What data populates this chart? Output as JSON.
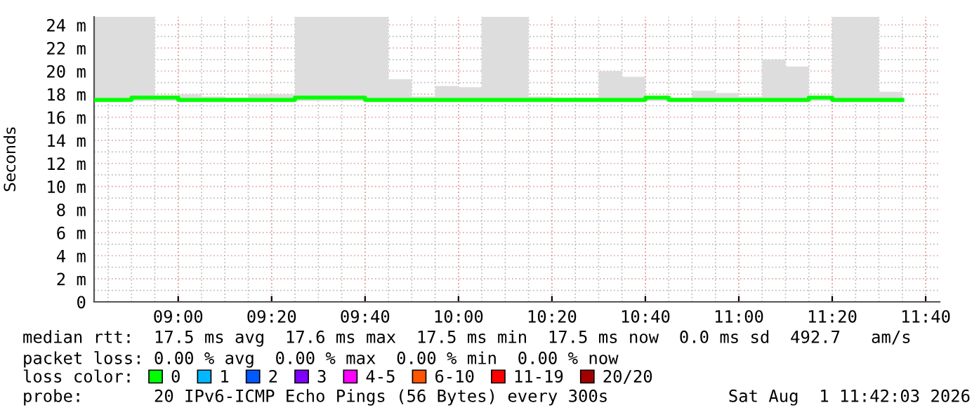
{
  "chart_data": {
    "type": "step",
    "ylabel": "Seconds",
    "x": [
      "2026-08-01T08:42",
      "2026-08-01T08:50",
      "2026-08-01T08:55",
      "2026-08-01T09:00",
      "2026-08-01T09:05",
      "2026-08-01T09:10",
      "2026-08-01T09:15",
      "2026-08-01T09:20",
      "2026-08-01T09:25",
      "2026-08-01T09:30",
      "2026-08-01T09:35",
      "2026-08-01T09:40",
      "2026-08-01T09:45",
      "2026-08-01T09:50",
      "2026-08-01T09:55",
      "2026-08-01T10:00",
      "2026-08-01T10:05",
      "2026-08-01T10:10",
      "2026-08-01T10:15",
      "2026-08-01T10:20",
      "2026-08-01T10:25",
      "2026-08-01T10:30",
      "2026-08-01T10:35",
      "2026-08-01T10:40",
      "2026-08-01T10:45",
      "2026-08-01T10:50",
      "2026-08-01T10:55",
      "2026-08-01T11:00",
      "2026-08-01T11:05",
      "2026-08-01T11:10",
      "2026-08-01T11:15",
      "2026-08-01T11:20",
      "2026-08-01T11:25",
      "2026-08-01T11:30",
      "2026-08-01T11:35"
    ],
    "series": [
      {
        "name": "0",
        "color": "#00ff00",
        "values": [
          17.5,
          17.7,
          17.7,
          17.5,
          17.5,
          17.5,
          17.5,
          17.5,
          17.7,
          17.7,
          17.7,
          17.5,
          17.5,
          17.5,
          17.5,
          17.5,
          17.5,
          17.5,
          17.5,
          17.5,
          17.5,
          17.5,
          17.5,
          17.7,
          17.5,
          17.5,
          17.5,
          17.5,
          17.5,
          17.5,
          17.7,
          17.5,
          17.5,
          17.5,
          17.5
        ],
        "lower": [
          17.4,
          17.4,
          17.4,
          17.4,
          17.4,
          17.4,
          17.4,
          17.4,
          17.4,
          17.4,
          17.4,
          17.4,
          17.4,
          17.4,
          17.4,
          17.4,
          17.4,
          17.4,
          17.4,
          17.4,
          17.4,
          17.4,
          17.4,
          17.4,
          17.4,
          17.4,
          17.4,
          17.4,
          17.4,
          17.4,
          17.4,
          17.4,
          17.4,
          17.4,
          17.4
        ],
        "upper": [
          24.7,
          24.7,
          17.9,
          18.0,
          17.8,
          17.7,
          18.0,
          18.0,
          24.7,
          24.7,
          24.7,
          24.7,
          19.3,
          17.8,
          18.7,
          18.6,
          24.7,
          24.7,
          17.8,
          17.7,
          17.7,
          20.0,
          19.5,
          17.8,
          17.7,
          18.3,
          18.1,
          17.8,
          21.0,
          20.4,
          17.8,
          24.7,
          24.7,
          18.2,
          18.2
        ]
      },
      {
        "name": "1",
        "color": "#00b8ff",
        "values": [
          null,
          null,
          null,
          null,
          null,
          null,
          null,
          null,
          null,
          null,
          null,
          null,
          null,
          null,
          null,
          null,
          null,
          null,
          null,
          null,
          null,
          null,
          null,
          null,
          null,
          null,
          null,
          null,
          null,
          null,
          null,
          null,
          null,
          null,
          null
        ]
      },
      {
        "name": "2",
        "color": "#0059ff",
        "values": [
          null,
          null,
          null,
          null,
          null,
          null,
          null,
          null,
          null,
          null,
          null,
          null,
          null,
          null,
          null,
          null,
          null,
          null,
          null,
          null,
          null,
          null,
          null,
          null,
          null,
          null,
          null,
          null,
          null,
          null,
          null,
          null,
          null,
          null,
          null
        ]
      },
      {
        "name": "3",
        "color": "#7e00ff",
        "values": [
          null,
          null,
          null,
          null,
          null,
          null,
          null,
          null,
          null,
          null,
          null,
          null,
          null,
          null,
          null,
          null,
          null,
          null,
          null,
          null,
          null,
          null,
          null,
          null,
          null,
          null,
          null,
          null,
          null,
          null,
          null,
          null,
          null,
          null,
          null
        ]
      },
      {
        "name": "4-5",
        "color": "#ff00ff",
        "values": [
          null,
          null,
          null,
          null,
          null,
          null,
          null,
          null,
          null,
          null,
          null,
          null,
          null,
          null,
          null,
          null,
          null,
          null,
          null,
          null,
          null,
          null,
          null,
          null,
          null,
          null,
          null,
          null,
          null,
          null,
          null,
          null,
          null,
          null,
          null
        ]
      },
      {
        "name": "6-10",
        "color": "#ff5500",
        "values": [
          null,
          null,
          null,
          null,
          null,
          null,
          null,
          null,
          null,
          null,
          null,
          null,
          null,
          null,
          null,
          null,
          null,
          null,
          null,
          null,
          null,
          null,
          null,
          null,
          null,
          null,
          null,
          null,
          null,
          null,
          null,
          null,
          null,
          null,
          null
        ]
      },
      {
        "name": "11-19",
        "color": "#ff0000",
        "values": [
          null,
          null,
          null,
          null,
          null,
          null,
          null,
          null,
          null,
          null,
          null,
          null,
          null,
          null,
          null,
          null,
          null,
          null,
          null,
          null,
          null,
          null,
          null,
          null,
          null,
          null,
          null,
          null,
          null,
          null,
          null,
          null,
          null,
          null,
          null
        ]
      },
      {
        "name": "20/20",
        "color": "#a10000",
        "values": [
          null,
          null,
          null,
          null,
          null,
          null,
          null,
          null,
          null,
          null,
          null,
          null,
          null,
          null,
          null,
          null,
          null,
          null,
          null,
          null,
          null,
          null,
          null,
          null,
          null,
          null,
          null,
          null,
          null,
          null,
          null,
          null,
          null,
          null,
          null
        ]
      }
    ],
    "legend": "bottom",
    "legend_title": "loss color:",
    "xlim": [
      "2026-08-01T08:42",
      "2026-08-01T11:43"
    ],
    "xticks": [
      {
        "value": "2026-08-01T09:00",
        "label": "09:00"
      },
      {
        "value": "2026-08-01T09:20",
        "label": "09:20"
      },
      {
        "value": "2026-08-01T09:40",
        "label": "09:40"
      },
      {
        "value": "2026-08-01T10:00",
        "label": "10:00"
      },
      {
        "value": "2026-08-01T10:20",
        "label": "10:20"
      },
      {
        "value": "2026-08-01T10:40",
        "label": "10:40"
      },
      {
        "value": "2026-08-01T11:00",
        "label": "11:00"
      },
      {
        "value": "2026-08-01T11:20",
        "label": "11:20"
      },
      {
        "value": "2026-08-01T11:40",
        "label": "11:40"
      }
    ],
    "ylim": [
      0,
      24.7
    ],
    "yticks": [
      0,
      {
        "value": 2,
        "label": "2 m"
      },
      {
        "value": 4,
        "label": "4 m"
      },
      {
        "value": 6,
        "label": "6 m"
      },
      {
        "value": 8,
        "label": "8 m"
      },
      {
        "value": 10,
        "label": "10 m"
      },
      {
        "value": 12,
        "label": "12 m"
      },
      {
        "value": 14,
        "label": "14 m"
      },
      {
        "value": 16,
        "label": "16 m"
      },
      {
        "value": 18,
        "label": "18 m"
      },
      {
        "value": 20,
        "label": "20 m"
      },
      {
        "value": 22,
        "label": "22 m"
      },
      {
        "value": 24,
        "label": "24 m"
      }
    ],
    "grid": true,
    "annotations": [
      "median rtt:  17.5 ms avg  17.6 ms max  17.5 ms min  17.5 ms now  0.0 ms sd  492.7   am/s",
      "packet loss: 0.00 % avg  0.00 % max  0.00 % min  0.00 % now",
      "probe:       20 IPv6-ICMP Echo Pings (56 Bytes) every 300s",
      "Sat Aug  1 11:42:03 2026"
    ]
  }
}
